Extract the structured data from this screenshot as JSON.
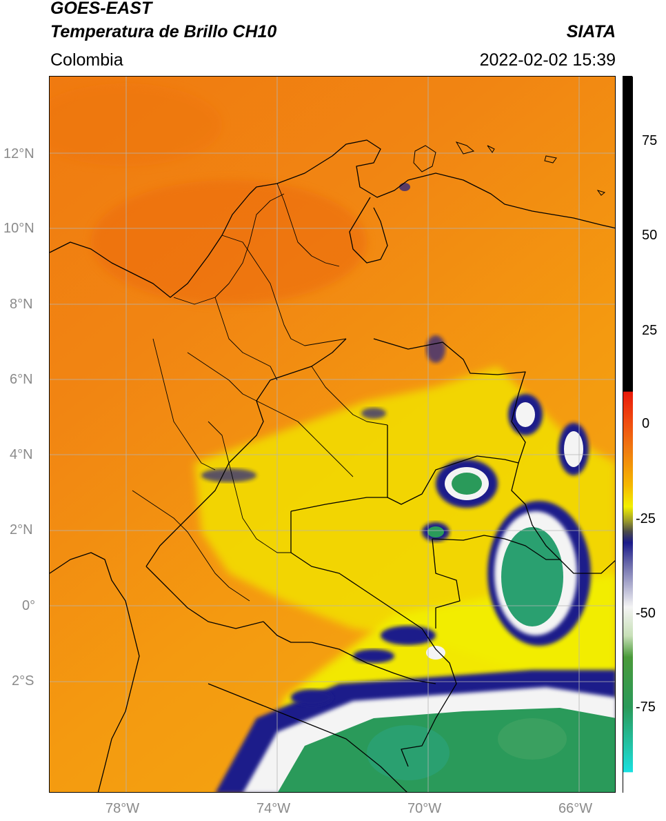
{
  "header": {
    "satellite": "GOES-EAST",
    "product": "Temperatura de Brillo CH10",
    "region": "Colombia",
    "org": "SIATA",
    "datetime": "2022-02-02 15:39"
  },
  "map": {
    "lat_labels": [
      "12°N",
      "10°N",
      "8°N",
      "6°N",
      "4°N",
      "2°N",
      "0°",
      "2°S"
    ],
    "lon_labels": [
      "78°W",
      "74°W",
      "70°W",
      "66°W"
    ],
    "colors": {
      "warm": "#f07a10",
      "mid": "#f5a300",
      "yellow": "#f2f000",
      "navy": "#1a1a8a",
      "white": "#f4f4f4",
      "green": "#2a9a5a",
      "teal": "#22b8a0"
    }
  },
  "colorbar": {
    "ticks": [
      "75",
      "50",
      "25",
      "0",
      "-25",
      "-50",
      "-75"
    ],
    "colors": [
      "#000000",
      "#e81a0a",
      "#f07a10",
      "#f5b800",
      "#f2f000",
      "#6a6a2a",
      "#1a1a8a",
      "#f4f4f4",
      "#2a9a5a",
      "#22c8b0",
      "#19e0e0"
    ]
  }
}
